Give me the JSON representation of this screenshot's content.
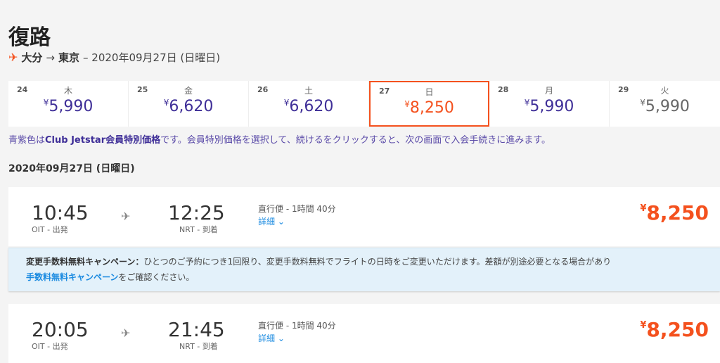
{
  "page": {
    "title": "復路",
    "origin": "大分",
    "arrow": "→",
    "destination": "東京",
    "date_text": "– 2020年09月27日 (日曜日)"
  },
  "strip": [
    {
      "day": "24",
      "weekday": "木",
      "yen": "¥",
      "price": "5,990",
      "type": "member"
    },
    {
      "day": "25",
      "weekday": "金",
      "yen": "¥",
      "price": "6,620",
      "type": "member"
    },
    {
      "day": "26",
      "weekday": "土",
      "yen": "¥",
      "price": "6,620",
      "type": "member"
    },
    {
      "day": "27",
      "weekday": "日",
      "yen": "¥",
      "price": "8,250",
      "type": "selected"
    },
    {
      "day": "28",
      "weekday": "月",
      "yen": "¥",
      "price": "5,990",
      "type": "member"
    },
    {
      "day": "29",
      "weekday": "火",
      "yen": "¥",
      "price": "5,990",
      "type": "normal"
    }
  ],
  "note": {
    "prefix": "青紫色は",
    "bold": "Club Jetstar会員特別価格",
    "rest": "です。会員特別価格を選択して、続けるをクリックすると、次の画面で入会手続きに進みます。"
  },
  "date_heading": "2020年09月27日 (日曜日)",
  "flights": [
    {
      "dep": "10:45",
      "dep_label": "OIT - 出発",
      "arr": "12:25",
      "arr_label": "NRT - 到着",
      "info": "直行便 - 1時間 40分",
      "details": "詳細 ⌄",
      "yen": "¥",
      "price": "8,250"
    },
    {
      "dep": "20:05",
      "dep_label": "OIT - 出発",
      "arr": "21:45",
      "arr_label": "NRT - 到着",
      "info": "直行便 - 1時間 40分",
      "details": "詳細 ⌄",
      "yen": "¥",
      "price": "8,250"
    }
  ],
  "banner": {
    "bold": "変更手数料無料キャンペーン：",
    "text": "ひとつのご予約につき1回限り、変更手数料無料でフライトの日時をご変更いただけます。差額が別途必要となる場合があり",
    "link": "手数料無料キャンペーン",
    "tail": "をご確認ください。"
  },
  "colors": {
    "accent": "#f4511e",
    "member": "#3f2f98",
    "link": "#1a8ae0",
    "banner_bg": "#e3f1fa"
  }
}
